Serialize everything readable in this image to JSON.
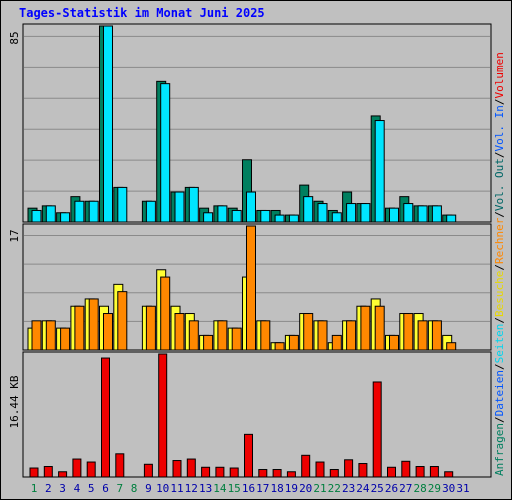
{
  "title": "Tages-Statistik im Monat Juni 2025",
  "colors": {
    "anfragen": "#007f5f",
    "dateien": "#00e5ff",
    "besuche": "#ffff33",
    "rechner": "#ff8800",
    "volumen": "#ee0000",
    "weekday_label": "#0000aa",
    "weekend_label": "#007f3f",
    "background": "#c0c0c0",
    "grid": "#8a8a8a"
  },
  "legend_right": [
    {
      "text": "Anfragen",
      "color": "#007f5f"
    },
    {
      "text": "/",
      "color": "#000000"
    },
    {
      "text": "Dateien",
      "color": "#0055ff"
    },
    {
      "text": "/",
      "color": "#000000"
    },
    {
      "text": "Seiten",
      "color": "#00d5ee"
    },
    {
      "text": "/",
      "color": "#000000"
    },
    {
      "text": "Besuche",
      "color": "#e8d800"
    },
    {
      "text": "/",
      "color": "#000000"
    },
    {
      "text": "Rechner",
      "color": "#ff8800"
    },
    {
      "text": "/",
      "color": "#000000"
    },
    {
      "text": "Vol. Out",
      "color": "#006666"
    },
    {
      "text": "/",
      "color": "#000000"
    },
    {
      "text": "Vol. In",
      "color": "#0055ff"
    },
    {
      "text": "/",
      "color": "#000000"
    },
    {
      "text": "Volumen",
      "color": "#ee0000"
    }
  ],
  "chart_data": [
    {
      "type": "bar",
      "panel": "hits",
      "ymax_label": "85",
      "ylim": [
        0,
        85
      ],
      "grid": true,
      "categories": [
        "1",
        "2",
        "3",
        "4",
        "5",
        "6",
        "7",
        "8",
        "9",
        "10",
        "11",
        "12",
        "13",
        "14",
        "15",
        "16",
        "17",
        "18",
        "19",
        "20",
        "21",
        "22",
        "23",
        "24",
        "25",
        "26",
        "27",
        "28",
        "29",
        "30",
        "31"
      ],
      "series": [
        {
          "name": "Anfragen",
          "values": [
            6,
            7,
            4,
            11,
            9,
            85,
            15,
            0,
            9,
            61,
            13,
            15,
            6,
            7,
            6,
            27,
            5,
            5,
            3,
            16,
            9,
            5,
            13,
            8,
            46,
            6,
            11,
            7,
            7,
            3,
            0
          ]
        },
        {
          "name": "Dateien",
          "values": [
            5,
            7,
            4,
            9,
            9,
            85,
            15,
            0,
            9,
            60,
            13,
            15,
            4,
            7,
            5,
            13,
            5,
            3,
            3,
            11,
            8,
            4,
            8,
            8,
            44,
            6,
            8,
            7,
            7,
            3,
            0
          ]
        }
      ]
    },
    {
      "type": "bar",
      "panel": "visits",
      "ymax_label": "17",
      "ylim": [
        0,
        17
      ],
      "grid": true,
      "categories": [
        "1",
        "2",
        "3",
        "4",
        "5",
        "6",
        "7",
        "8",
        "9",
        "10",
        "11",
        "12",
        "13",
        "14",
        "15",
        "16",
        "17",
        "18",
        "19",
        "20",
        "21",
        "22",
        "23",
        "24",
        "25",
        "26",
        "27",
        "28",
        "29",
        "30",
        "31"
      ],
      "series": [
        {
          "name": "Besuche",
          "values": [
            3,
            4,
            3,
            6,
            7,
            6,
            9,
            0,
            6,
            11,
            6,
            5,
            2,
            4,
            3,
            10,
            4,
            1,
            2,
            5,
            4,
            1,
            4,
            6,
            7,
            2,
            5,
            5,
            4,
            2,
            0
          ]
        },
        {
          "name": "Rechner",
          "values": [
            4,
            4,
            3,
            6,
            7,
            5,
            8,
            0,
            6,
            10,
            5,
            4,
            2,
            4,
            3,
            17,
            4,
            1,
            2,
            5,
            4,
            2,
            4,
            6,
            6,
            2,
            5,
            4,
            4,
            1,
            0
          ]
        }
      ]
    },
    {
      "type": "bar",
      "panel": "volume",
      "ymax_label": "16.44 KB",
      "unit": "KB",
      "ylim": [
        0,
        16.44
      ],
      "grid": false,
      "categories": [
        "1",
        "2",
        "3",
        "4",
        "5",
        "6",
        "7",
        "8",
        "9",
        "10",
        "11",
        "12",
        "13",
        "14",
        "15",
        "16",
        "17",
        "18",
        "19",
        "20",
        "21",
        "22",
        "23",
        "24",
        "25",
        "26",
        "27",
        "28",
        "29",
        "30",
        "31"
      ],
      "series": [
        {
          "name": "Volumen",
          "values": [
            1.2,
            1.4,
            0.7,
            2.4,
            2.0,
            15.9,
            3.1,
            0,
            1.7,
            16.44,
            2.2,
            2.4,
            1.3,
            1.3,
            1.2,
            5.7,
            1.0,
            1.0,
            0.7,
            2.9,
            2.0,
            1.0,
            2.3,
            1.8,
            12.7,
            1.3,
            2.1,
            1.4,
            1.4,
            0.7,
            0
          ]
        }
      ],
      "weekend_days": [
        "1",
        "7",
        "8",
        "14",
        "15",
        "21",
        "22",
        "28",
        "29"
      ]
    }
  ]
}
